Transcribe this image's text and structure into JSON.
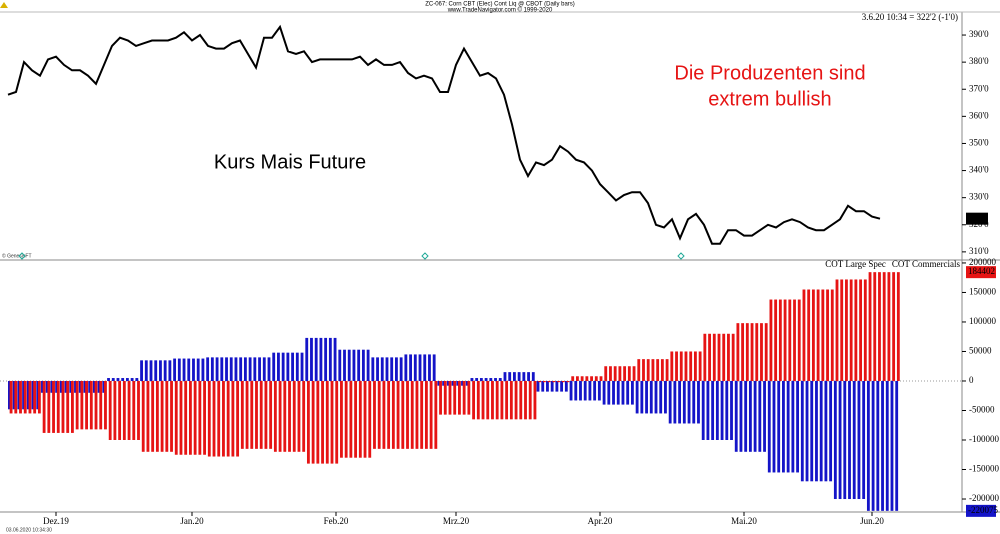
{
  "header": {
    "title": "ZC-067: Corn CBT (Elec) Cont Liq @ CBOT  (Daily bars)",
    "source": "www.TradeNavigator.com © 1999-2020",
    "quote": "3.6.20 10:34 = 322'2 (-1'0)",
    "watermark": "© GenesisFT",
    "timestamp": "03.06.2020 10:34:30"
  },
  "chart_data": [
    {
      "type": "line",
      "annotations": [
        "Kurs Mais Future",
        "Die Produzenten sind",
        "extrem bullish"
      ],
      "color": "#000000",
      "categories": [
        null,
        null,
        null,
        null,
        null,
        null,
        "Dez.19",
        null,
        null,
        null,
        null,
        null,
        null,
        null,
        null,
        null,
        null,
        null,
        null,
        null,
        null,
        null,
        null,
        "Jan.20",
        null,
        null,
        null,
        null,
        null,
        null,
        null,
        null,
        null,
        null,
        null,
        null,
        null,
        null,
        null,
        null,
        null,
        "Feb.20",
        null,
        null,
        null,
        null,
        null,
        null,
        null,
        null,
        null,
        null,
        null,
        null,
        null,
        null,
        "Mrz.20",
        null,
        null,
        null,
        null,
        null,
        null,
        null,
        null,
        null,
        null,
        null,
        null,
        null,
        null,
        null,
        null,
        null,
        "Apr.20",
        null,
        null,
        null,
        null,
        null,
        null,
        null,
        null,
        null,
        null,
        null,
        null,
        null,
        null,
        null,
        null,
        null,
        "Mai.20",
        null,
        null,
        null,
        null,
        null,
        null,
        null,
        null,
        null,
        null,
        null,
        null,
        null,
        null,
        null,
        "Jun.20",
        null
      ],
      "values": [
        368,
        369,
        380,
        377,
        375,
        381,
        382,
        379,
        377,
        377,
        375,
        372,
        379,
        386,
        389,
        388,
        386,
        387,
        388,
        388,
        388,
        389,
        391,
        388,
        390,
        386,
        385,
        385,
        387,
        388,
        383,
        378,
        389,
        389,
        393,
        384,
        383,
        384,
        380,
        381,
        381,
        381,
        381,
        381,
        382,
        379,
        381,
        379,
        379,
        380,
        376,
        374,
        375,
        374,
        369,
        369,
        379,
        385,
        380,
        375,
        376,
        374,
        368,
        357,
        344,
        338,
        343,
        342,
        344,
        349,
        347,
        344,
        343,
        340,
        335,
        332,
        329,
        331,
        332,
        332,
        328,
        320,
        319,
        322,
        315,
        322,
        324,
        320,
        313,
        313,
        318,
        318,
        316,
        316,
        318,
        320,
        319,
        321,
        322,
        321,
        319,
        318,
        318,
        320,
        322,
        327,
        325,
        325,
        323,
        322.25
      ],
      "value_labels": [
        null,
        null,
        null,
        null,
        null,
        null,
        null,
        null,
        null,
        null,
        null,
        null,
        null,
        null,
        null,
        null,
        null,
        null,
        null,
        null,
        null,
        null,
        null,
        null,
        null,
        null,
        null,
        null,
        null,
        null,
        null,
        null,
        null,
        null,
        null,
        null,
        null,
        null,
        null,
        null,
        null,
        null,
        null,
        null,
        null,
        null,
        null,
        null,
        null,
        null,
        null,
        null,
        null,
        null,
        null,
        null,
        null,
        null,
        null,
        null,
        null,
        null,
        null,
        null,
        null,
        null,
        null,
        null,
        null,
        null,
        null,
        null,
        null,
        null,
        null,
        null,
        null,
        null,
        null,
        null,
        null,
        null,
        null,
        null,
        null,
        null,
        null,
        null,
        null,
        null,
        null,
        null,
        null,
        null,
        null,
        null,
        null,
        null,
        null,
        null,
        null,
        null,
        null,
        null,
        null,
        null,
        null,
        null,
        null,
        "322'2"
      ],
      "ylim": [
        307,
        398.5
      ],
      "yticks": [
        {
          "value": 310,
          "label": "310'0"
        },
        {
          "value": 320,
          "label": "320'0"
        },
        {
          "value": 330,
          "label": "330'0"
        },
        {
          "value": 340,
          "label": "340'0"
        },
        {
          "value": 350,
          "label": "350'0"
        },
        {
          "value": 360,
          "label": "360'0"
        },
        {
          "value": 370,
          "label": "370'0"
        },
        {
          "value": 380,
          "label": "380'0"
        },
        {
          "value": 390,
          "label": "390'0"
        }
      ]
    },
    {
      "type": "bar",
      "legend": "top-right",
      "categories": [
        null,
        null,
        null,
        null,
        null,
        null,
        null,
        null,
        null,
        null,
        null,
        null,
        null,
        null,
        null,
        null,
        null,
        null,
        null,
        null,
        null,
        null,
        null,
        null,
        null,
        null,
        null
      ],
      "series": [
        {
          "name": "COT Large Spec",
          "color": "#1414c8",
          "values": [
            -48000,
            -20000,
            -20000,
            5000,
            35000,
            38000,
            40000,
            40000,
            48000,
            73000,
            53000,
            40000,
            45000,
            -8000,
            5000,
            15000,
            -18000,
            -33000,
            -40000,
            -55000,
            -72000,
            -100000,
            -120000,
            -155000,
            -170000,
            -200000,
            -220075
          ]
        },
        {
          "name": "COT Commercials",
          "color": "#e61414",
          "values": [
            -55000,
            -88000,
            -82000,
            -100000,
            -120000,
            -125000,
            -128000,
            -115000,
            -120000,
            -140000,
            -130000,
            -115000,
            -115000,
            -57000,
            -65000,
            -65000,
            -2000,
            8000,
            25000,
            37000,
            50000,
            80000,
            98000,
            138000,
            155000,
            172000,
            184402
          ]
        }
      ],
      "ylim": [
        -222000,
        205000
      ],
      "yticks": [
        -200000,
        -150000,
        -100000,
        -50000,
        0,
        50000,
        100000,
        150000,
        200000
      ]
    }
  ]
}
